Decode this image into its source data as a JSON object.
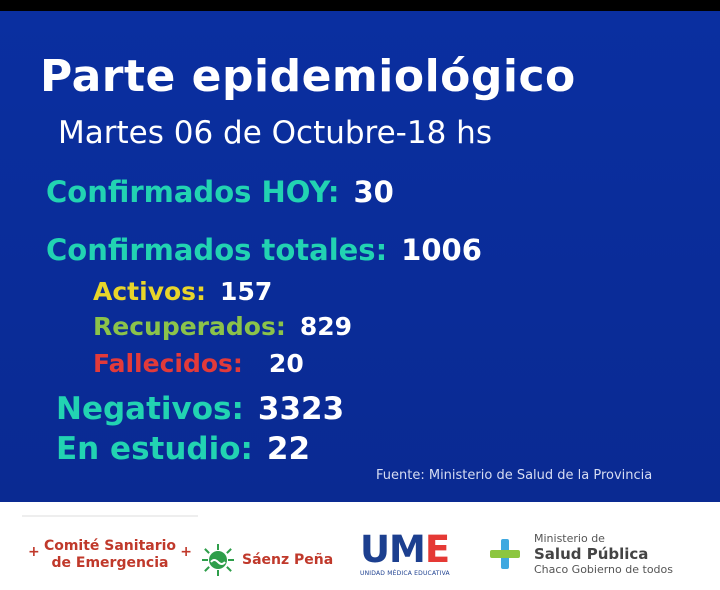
{
  "title": "Parte epidemiológico",
  "subtitle": "Martes 06 de Octubre-18 hs",
  "stats": {
    "confirmados_hoy": {
      "label": "Confirmados HOY:",
      "value": "30"
    },
    "confirmados_totales": {
      "label": "Confirmados totales:",
      "value": "1006"
    },
    "activos": {
      "label": "Activos:",
      "value": "157"
    },
    "recuperados": {
      "label": "Recuperados:",
      "value": "829"
    },
    "fallecidos": {
      "label": "Fallecidos:",
      "value": "20"
    },
    "negativos": {
      "label": "Negativos:",
      "value": "3323"
    },
    "en_estudio": {
      "label": "En estudio:",
      "value": "22"
    }
  },
  "source": "Fuente: Ministerio de Salud de la Provincia",
  "footer": {
    "comite": {
      "line1": "Comité Sanitario",
      "line2": "de Emergencia"
    },
    "saenz": "Sáenz Peña",
    "ume": {
      "main": "UM",
      "tail": "E",
      "sub": "UNIDAD MÉDICA EDUCATIVA"
    },
    "ministerio": {
      "line1": "Ministerio de",
      "line2": "Salud Pública",
      "line3": "Chaco Gobierno de todos"
    }
  },
  "colors": {
    "background": "#0a2fa0",
    "teal": "#22d3b2",
    "yellow": "#e8d52a",
    "green": "#8bc34a",
    "red": "#e23a3a"
  }
}
